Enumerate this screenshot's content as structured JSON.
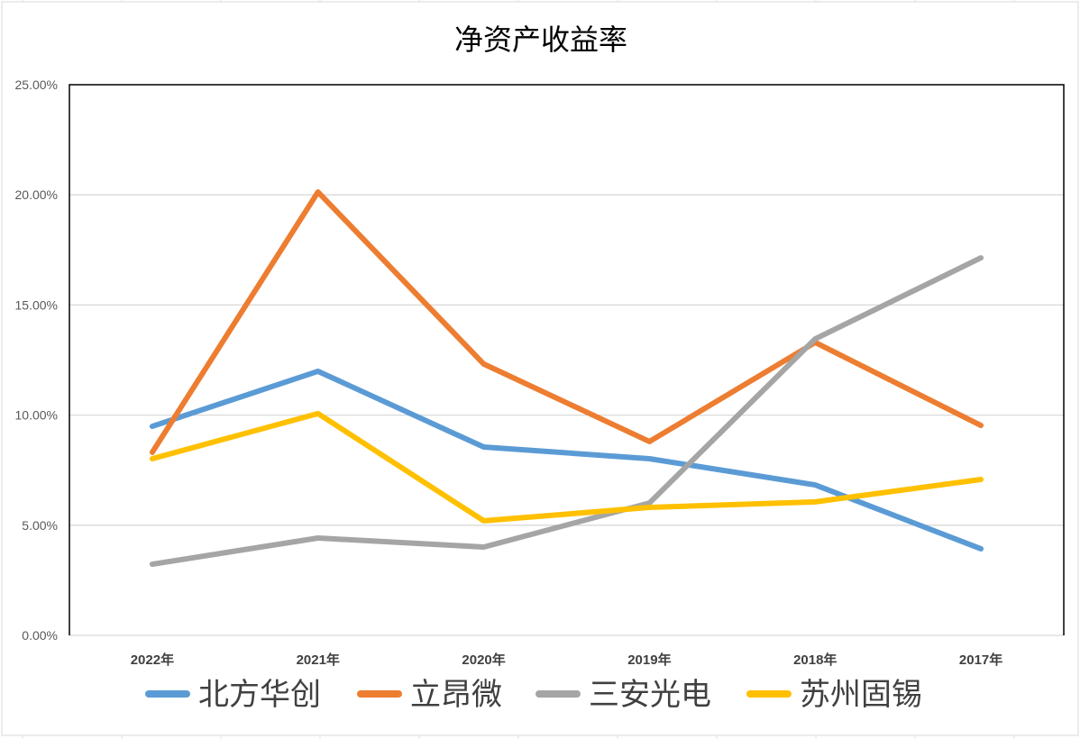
{
  "chart_data": {
    "type": "line",
    "title": "净资产收益率",
    "categories": [
      "2022年",
      "2021年",
      "2020年",
      "2019年",
      "2018年",
      "2017年"
    ],
    "ylim": [
      0,
      25
    ],
    "yticks": [
      "0.00%",
      "5.00%",
      "10.00%",
      "15.00%",
      "20.00%",
      "25.00%"
    ],
    "yunit": "%",
    "grid": true,
    "legend_position": "bottom",
    "series": [
      {
        "name": "北方华创",
        "color": "#5B9BD5",
        "values": [
          9.49,
          11.99,
          8.55,
          8.02,
          6.83,
          3.93
        ]
      },
      {
        "name": "立昂微",
        "color": "#ED7D31",
        "values": [
          8.31,
          20.13,
          12.32,
          8.8,
          13.3,
          9.53
        ]
      },
      {
        "name": "三安光电",
        "color": "#A5A5A5",
        "values": [
          3.23,
          4.42,
          4.01,
          6.01,
          13.46,
          17.14
        ]
      },
      {
        "name": "苏州固锡",
        "color": "#FFC000",
        "values": [
          8.02,
          10.07,
          5.2,
          5.81,
          6.06,
          7.08
        ]
      }
    ]
  }
}
